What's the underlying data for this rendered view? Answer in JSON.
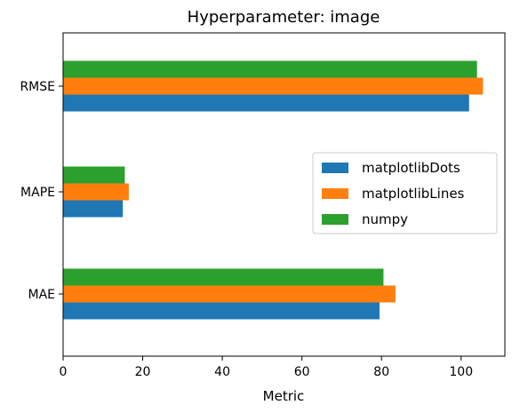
{
  "chart_data": {
    "type": "bar",
    "orientation": "horizontal",
    "title": "Hyperparameter: image",
    "xlabel": "Metric",
    "ylabel": "",
    "categories": [
      "MAE",
      "MAPE",
      "RMSE"
    ],
    "series": [
      {
        "name": "matplotlibDots",
        "color": "#1f77b4",
        "values": [
          79.5,
          15.0,
          102.0
        ]
      },
      {
        "name": "matplotlibLines",
        "color": "#ff7f0e",
        "values": [
          83.5,
          16.5,
          105.5
        ]
      },
      {
        "name": "numpy",
        "color": "#2ca02c",
        "values": [
          80.5,
          15.5,
          104.0
        ]
      }
    ],
    "xlim": [
      0,
      111
    ],
    "xticks": [
      0,
      20,
      40,
      60,
      80,
      100
    ],
    "grid": false,
    "legend_position": "center-right"
  }
}
